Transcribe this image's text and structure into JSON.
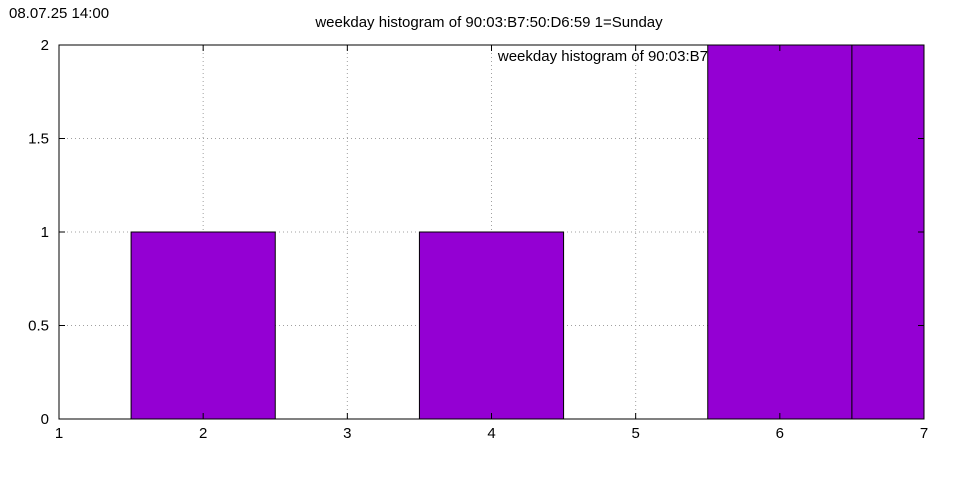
{
  "timestamp": "08.07.25 14:00",
  "chart_data": {
    "type": "bar",
    "title": "weekday histogram of 90:03:B7:50:D6:59 1=Sunday",
    "xlabel": "",
    "ylabel": "",
    "xlim": [
      1,
      7
    ],
    "ylim": [
      0,
      2
    ],
    "x_ticks": [
      "1",
      "2",
      "3",
      "4",
      "5",
      "6",
      "7"
    ],
    "y_ticks": [
      "0",
      "0.5",
      "1",
      "1.5",
      "2"
    ],
    "grid": true,
    "legend_position": "top-right",
    "series": [
      {
        "name": "weekday histogram of 90:03:B7",
        "color": "#9400d3",
        "points": [
          {
            "x": 2,
            "y": 1
          },
          {
            "x": 4,
            "y": 1
          },
          {
            "x": 6,
            "y": 2
          },
          {
            "x": 7,
            "y": 2
          }
        ]
      }
    ]
  }
}
